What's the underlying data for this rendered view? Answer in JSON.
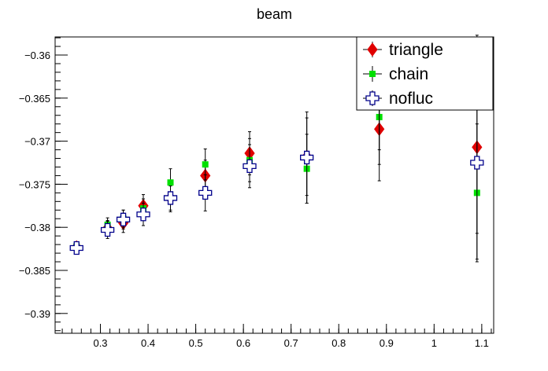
{
  "chart_data": {
    "type": "scatter",
    "title": "beam",
    "xlabel": "",
    "ylabel": "",
    "xlim": [
      0.205,
      1.125
    ],
    "ylim": [
      -0.3923,
      -0.3579
    ],
    "x_ticks": [
      0.3,
      0.4,
      0.5,
      0.6,
      0.7,
      0.8,
      0.9,
      1.0,
      1.1
    ],
    "x_tick_labels": [
      "0.3",
      "0.4",
      "0.5",
      "0.6",
      "0.7",
      "0.8",
      "0.9",
      "1",
      "1.1"
    ],
    "y_ticks": [
      -0.36,
      -0.365,
      -0.37,
      -0.375,
      -0.38,
      -0.385,
      -0.39
    ],
    "y_tick_labels": [
      "−0.36",
      "−0.365",
      "−0.37",
      "−0.375",
      "−0.38",
      "−0.385",
      "−0.39"
    ],
    "grid": false,
    "legend_position": "top-right",
    "series": [
      {
        "name": "triangle",
        "marker": "diamond",
        "color": "#e00000",
        "points": [
          {
            "x": 0.25,
            "y": -0.3823,
            "err": 0.0005
          },
          {
            "x": 0.315,
            "y": -0.3801,
            "err": 0.0009
          },
          {
            "x": 0.348,
            "y": -0.3795,
            "err": 0.0011
          },
          {
            "x": 0.39,
            "y": -0.3775,
            "err": 0.0013
          },
          {
            "x": 0.447,
            "y": -0.3766,
            "err": 0.0016
          },
          {
            "x": 0.52,
            "y": -0.374,
            "err": 0.0018
          },
          {
            "x": 0.613,
            "y": -0.3714,
            "err": 0.0025
          },
          {
            "x": 0.733,
            "y": -0.3718,
            "err": 0.0045
          },
          {
            "x": 0.885,
            "y": -0.3686,
            "err": 0.006
          },
          {
            "x": 1.09,
            "y": -0.3707,
            "err": 0.013
          }
        ]
      },
      {
        "name": "chain",
        "marker": "square",
        "color": "#00e000",
        "points": [
          {
            "x": 0.25,
            "y": -0.3822,
            "err": 0.0004
          },
          {
            "x": 0.315,
            "y": -0.3797,
            "err": 0.0008
          },
          {
            "x": 0.348,
            "y": -0.379,
            "err": 0.001
          },
          {
            "x": 0.39,
            "y": -0.3778,
            "err": 0.0011
          },
          {
            "x": 0.447,
            "y": -0.3748,
            "err": 0.0016
          },
          {
            "x": 0.52,
            "y": -0.3727,
            "err": 0.0018
          },
          {
            "x": 0.613,
            "y": -0.3722,
            "err": 0.0025
          },
          {
            "x": 0.733,
            "y": -0.3732,
            "err": 0.004
          },
          {
            "x": 0.885,
            "y": -0.3672,
            "err": 0.0055
          },
          {
            "x": 1.09,
            "y": -0.376,
            "err": 0.008
          }
        ]
      },
      {
        "name": "nofluc",
        "marker": "open-cross",
        "color": "#00008b",
        "points": [
          {
            "x": 0.25,
            "y": -0.3824,
            "err": 0.0005
          },
          {
            "x": 0.315,
            "y": -0.3803,
            "err": 0.001
          },
          {
            "x": 0.348,
            "y": -0.3791,
            "err": 0.0011
          },
          {
            "x": 0.39,
            "y": -0.3785,
            "err": 0.0013
          },
          {
            "x": 0.447,
            "y": -0.3766,
            "err": 0.0014
          },
          {
            "x": 0.52,
            "y": -0.376,
            "err": 0.0021
          },
          {
            "x": 0.613,
            "y": -0.3729,
            "err": 0.0025
          },
          {
            "x": 0.733,
            "y": -0.3719,
            "err": 0.0053
          },
          {
            "x": 0.885,
            "y": -0.3655,
            "err": 0.0055
          },
          {
            "x": 1.09,
            "y": -0.3725,
            "err": 0.0082
          }
        ]
      }
    ]
  }
}
